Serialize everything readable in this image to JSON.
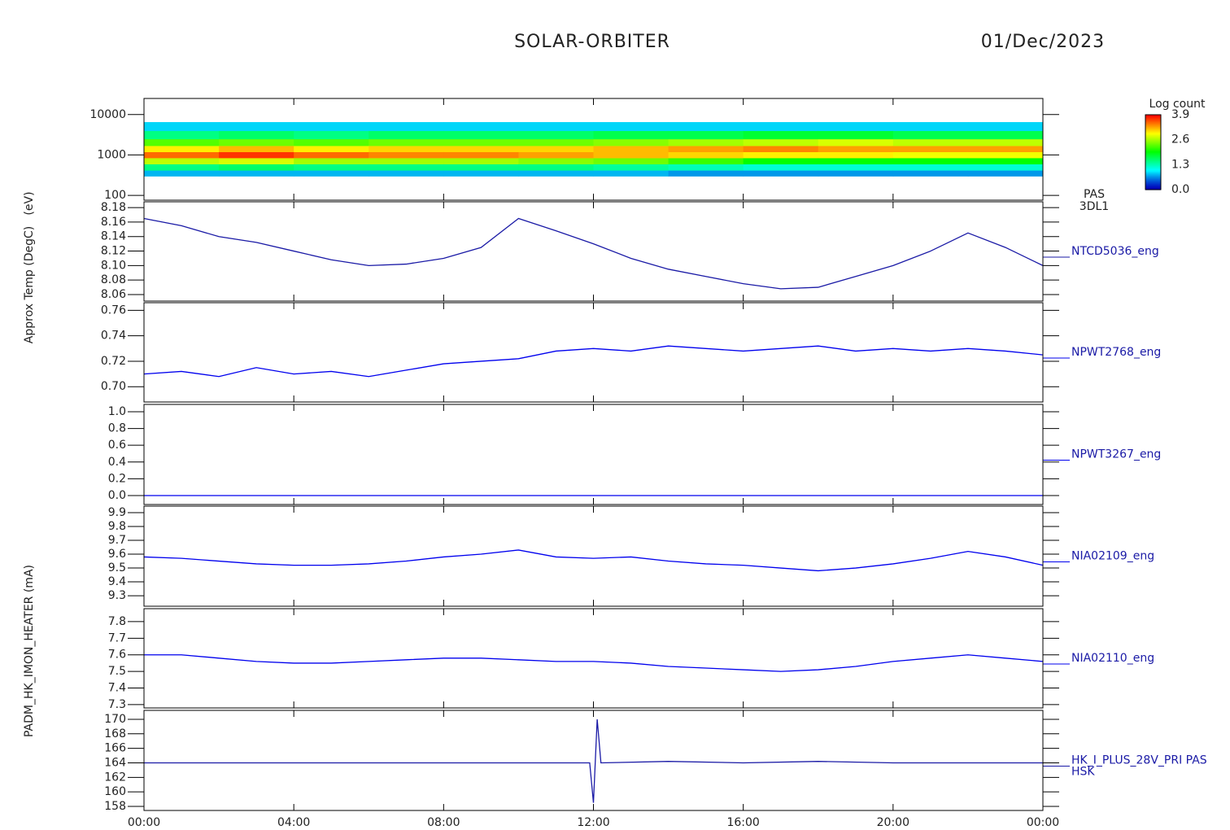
{
  "header": {
    "title": "SOLAR-ORBITER",
    "date": "01/Dec/2023"
  },
  "y_axis_labels": [
    "(eV)",
    "Approx Temp (DegC)",
    "PADM_HK_IMON_HEATER (mA)"
  ],
  "time_axis": {
    "xlim": [
      0,
      24
    ],
    "xticks": [
      {
        "value": 0,
        "label": "00:00"
      },
      {
        "value": 4,
        "label": "04:00"
      },
      {
        "value": 8,
        "label": "08:00"
      },
      {
        "value": 12,
        "label": "12:00"
      },
      {
        "value": 16,
        "label": "16:00"
      },
      {
        "value": 20,
        "label": "20:00"
      },
      {
        "value": 24,
        "label": "00:00"
      }
    ]
  },
  "chart_data": [
    {
      "type": "heatmap",
      "labels": [
        "PAS",
        "3DL1"
      ],
      "ylog": true,
      "ylim": [
        76,
        25000
      ],
      "yticks": [
        100,
        1000,
        10000
      ],
      "x_edges": [
        0,
        2,
        4,
        6,
        8,
        10,
        12,
        14,
        16,
        18,
        20,
        22,
        24
      ],
      "y_edges": [
        300,
        420,
        600,
        850,
        1200,
        1700,
        2500,
        4000,
        6500
      ],
      "values": [
        [
          0.8,
          1.5,
          2.7,
          3.5,
          3.0,
          2.3,
          1.5,
          0.9
        ],
        [
          0.8,
          1.6,
          2.8,
          3.7,
          3.2,
          2.4,
          1.6,
          0.9
        ],
        [
          0.8,
          1.5,
          2.6,
          3.5,
          3.0,
          2.3,
          1.5,
          0.9
        ],
        [
          0.8,
          1.5,
          2.6,
          3.4,
          3.1,
          2.4,
          1.6,
          0.9
        ],
        [
          0.8,
          1.5,
          2.6,
          3.4,
          3.1,
          2.4,
          1.6,
          0.9
        ],
        [
          0.8,
          1.5,
          2.5,
          3.3,
          3.1,
          2.4,
          1.6,
          0.9
        ],
        [
          0.8,
          1.4,
          2.4,
          3.2,
          3.2,
          2.5,
          1.7,
          0.9
        ],
        [
          0.7,
          1.3,
          2.2,
          3.1,
          3.3,
          2.6,
          1.7,
          0.9
        ],
        [
          0.7,
          1.2,
          2.0,
          3.0,
          3.4,
          2.7,
          1.8,
          0.9
        ],
        [
          0.7,
          1.2,
          2.0,
          3.0,
          3.3,
          2.8,
          1.8,
          0.9
        ],
        [
          0.7,
          1.2,
          2.0,
          2.9,
          3.3,
          2.7,
          1.7,
          0.9
        ],
        [
          0.7,
          1.2,
          2.0,
          2.9,
          3.3,
          2.7,
          1.7,
          0.9
        ]
      ],
      "colorbar": {
        "title": "Log count",
        "zlim": [
          0,
          3.9
        ],
        "zticks": [
          {
            "value": 0,
            "label": "0.0"
          },
          1.3,
          2.6,
          3.9
        ]
      }
    },
    {
      "type": "line",
      "label": "NTCD5036_eng",
      "color": "#1a1aa6",
      "ylim": [
        8.051,
        8.188
      ],
      "yticks": [
        8.06,
        8.08,
        {
          "value": 8.1,
          "label": "8.10"
        },
        8.12,
        8.14,
        8.16,
        8.18
      ],
      "x": [
        0,
        1,
        2,
        3,
        4,
        5,
        6,
        7,
        8,
        9,
        10,
        11,
        12,
        13,
        14,
        15,
        16,
        17,
        18,
        19,
        20,
        21,
        22,
        23,
        24
      ],
      "values": [
        8.165,
        8.155,
        8.14,
        8.132,
        8.12,
        8.108,
        8.1,
        8.102,
        8.11,
        8.125,
        8.165,
        8.148,
        8.13,
        8.11,
        8.095,
        8.085,
        8.075,
        8.068,
        8.07,
        8.085,
        8.1,
        8.12,
        8.145,
        8.125,
        8.1
      ]
    },
    {
      "type": "line",
      "label": "NPWT2768_eng",
      "color": "#0000ee",
      "ylim": [
        0.688,
        0.766
      ],
      "yticks": [
        {
          "value": 0.7,
          "label": "0.70"
        },
        0.72,
        0.74,
        0.76
      ],
      "x": [
        0,
        1,
        2,
        3,
        4,
        5,
        6,
        7,
        8,
        9,
        10,
        11,
        12,
        13,
        14,
        15,
        16,
        17,
        18,
        19,
        20,
        21,
        22,
        23,
        24
      ],
      "values": [
        0.71,
        0.712,
        0.708,
        0.715,
        0.71,
        0.712,
        0.708,
        0.713,
        0.718,
        0.72,
        0.722,
        0.728,
        0.73,
        0.728,
        0.732,
        0.73,
        0.728,
        0.73,
        0.732,
        0.728,
        0.73,
        0.728,
        0.73,
        0.728,
        0.725
      ]
    },
    {
      "type": "line",
      "label": "NPWT3267_eng",
      "color": "#0000ee",
      "ylim": [
        -0.107,
        1.087
      ],
      "yticks": [
        {
          "value": 0,
          "label": "0.0"
        },
        0.2,
        0.4,
        0.6,
        0.8,
        {
          "value": 1,
          "label": "1.0"
        }
      ],
      "x": [
        0,
        4,
        8,
        12,
        16,
        20,
        24
      ],
      "values": [
        0,
        0,
        0,
        0,
        0,
        0,
        0
      ]
    },
    {
      "type": "line",
      "label": "NIA02109_eng",
      "color": "#0000ee",
      "ylim": [
        9.224,
        9.947
      ],
      "yticks": [
        9.3,
        9.4,
        9.5,
        9.6,
        9.7,
        9.8,
        9.9
      ],
      "x": [
        0,
        1,
        2,
        3,
        4,
        5,
        6,
        7,
        8,
        9,
        10,
        11,
        12,
        13,
        14,
        15,
        16,
        17,
        18,
        19,
        20,
        21,
        22,
        23,
        24
      ],
      "values": [
        9.58,
        9.57,
        9.55,
        9.53,
        9.52,
        9.52,
        9.53,
        9.55,
        9.58,
        9.6,
        9.63,
        9.58,
        9.57,
        9.58,
        9.55,
        9.53,
        9.52,
        9.5,
        9.48,
        9.5,
        9.53,
        9.57,
        9.62,
        9.58,
        9.52
      ]
    },
    {
      "type": "line",
      "label": "NIA02110_eng",
      "color": "#0000ee",
      "ylim": [
        7.28,
        7.878
      ],
      "yticks": [
        7.3,
        7.4,
        7.5,
        7.6,
        7.7,
        7.8
      ],
      "x": [
        0,
        1,
        2,
        3,
        4,
        5,
        6,
        7,
        8,
        9,
        10,
        11,
        12,
        13,
        14,
        15,
        16,
        17,
        18,
        19,
        20,
        21,
        22,
        23,
        24
      ],
      "values": [
        7.6,
        7.6,
        7.58,
        7.56,
        7.55,
        7.55,
        7.56,
        7.57,
        7.58,
        7.58,
        7.57,
        7.56,
        7.56,
        7.55,
        7.53,
        7.52,
        7.51,
        7.5,
        7.51,
        7.53,
        7.56,
        7.58,
        7.6,
        7.58,
        7.56
      ]
    },
    {
      "type": "line",
      "label": "HK_I_PLUS_28V_PRI PAS",
      "sublabel": "HSK",
      "color": "#1a1aa6",
      "ylim": [
        157.44,
        171.23
      ],
      "yticks": [
        158,
        160,
        162,
        164,
        166,
        168,
        170
      ],
      "x": [
        0,
        2,
        4,
        6,
        8,
        10,
        11.9,
        12,
        12.1,
        12.2,
        14,
        16,
        18,
        20,
        22,
        24
      ],
      "values": [
        164,
        164,
        164,
        164,
        164,
        164,
        164,
        158.5,
        170,
        164,
        164.2,
        164,
        164.2,
        164,
        164,
        164
      ]
    }
  ]
}
